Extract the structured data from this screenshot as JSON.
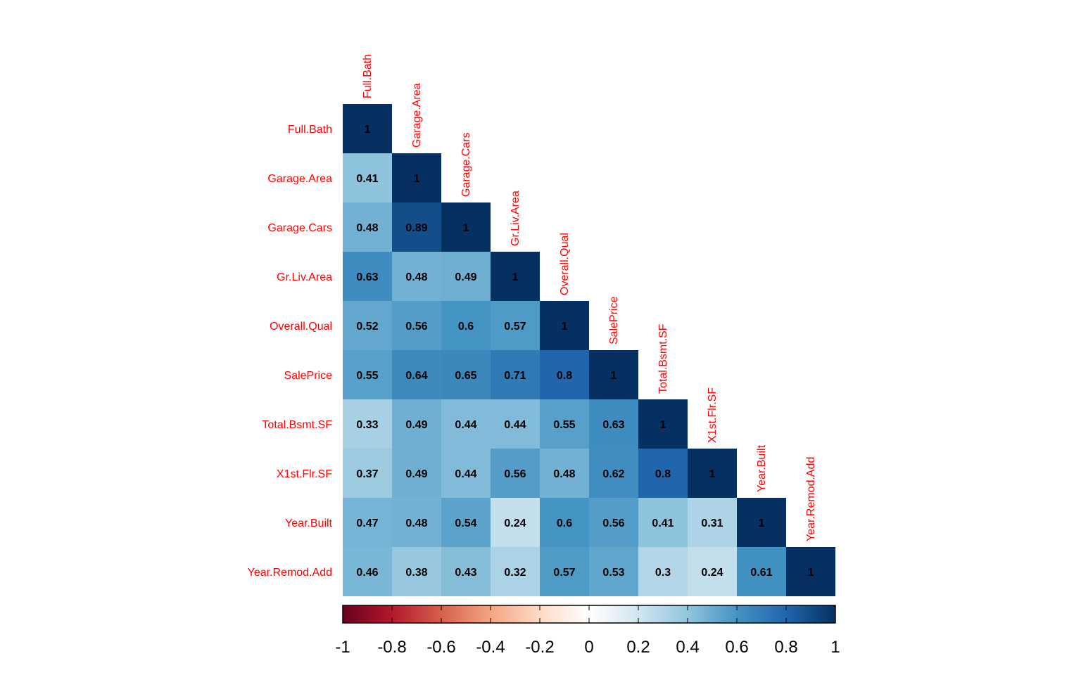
{
  "chart_data": {
    "type": "heatmap",
    "variables": [
      "Full.Bath",
      "Garage.Area",
      "Garage.Cars",
      "Gr.Liv.Area",
      "Overall.Qual",
      "SalePrice",
      "Total.Bsmt.SF",
      "X1st.Flr.SF",
      "Year.Built",
      "Year.Remod.Add"
    ],
    "matrix": [
      [
        1
      ],
      [
        0.41,
        1
      ],
      [
        0.48,
        0.89,
        1
      ],
      [
        0.63,
        0.48,
        0.49,
        1
      ],
      [
        0.52,
        0.56,
        0.6,
        0.57,
        1
      ],
      [
        0.55,
        0.64,
        0.65,
        0.71,
        0.8,
        1
      ],
      [
        0.33,
        0.49,
        0.44,
        0.44,
        0.55,
        0.63,
        1
      ],
      [
        0.37,
        0.49,
        0.44,
        0.56,
        0.48,
        0.62,
        0.8,
        1
      ],
      [
        0.47,
        0.48,
        0.54,
        0.24,
        0.6,
        0.56,
        0.41,
        0.31,
        1
      ],
      [
        0.46,
        0.38,
        0.43,
        0.32,
        0.57,
        0.53,
        0.3,
        0.24,
        0.61,
        1
      ]
    ],
    "triangle": "lower",
    "label_color": "#ff0000",
    "colorbar": {
      "range": [
        -1,
        1
      ],
      "ticks": [
        "-1",
        "-0.8",
        "-0.6",
        "-0.4",
        "-0.2",
        "0",
        "0.2",
        "0.4",
        "0.6",
        "0.8",
        "1"
      ],
      "placement": "bottom",
      "colors": [
        "#67001f",
        "#b2182b",
        "#d6604d",
        "#f4a582",
        "#fddbc7",
        "#ffffff",
        "#d1e5f0",
        "#92c5de",
        "#4393c3",
        "#2166ac",
        "#053061"
      ]
    }
  }
}
